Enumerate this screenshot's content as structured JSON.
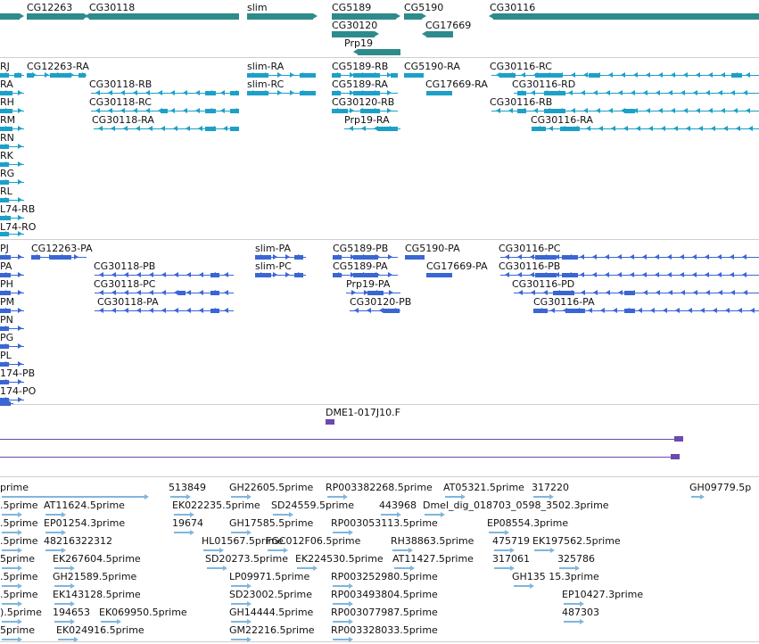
{
  "genes": [
    "CG12263",
    "CG30118",
    "slim",
    "CG5189",
    "CG5190",
    "CG30116",
    "CG30120",
    "CG17669",
    "Prp19"
  ],
  "transcripts_rna": [
    "RJ",
    "CG12263-RA",
    "slim-RA",
    "CG5189-RB",
    "CG5190-RA",
    "CG30116-RC",
    "RA",
    "CG30118-RB",
    "slim-RC",
    "CG5189-RA",
    "CG17669-RA",
    "CG30116-RD",
    "RH",
    "CG30118-RC",
    "CG30120-RB",
    "CG30116-RB",
    "RM",
    "CG30118-RA",
    "Prp19-RA",
    "CG30116-RA",
    "RN",
    "RK",
    "RG",
    "RL",
    "L74-RB",
    "L74-RO"
  ],
  "transcripts_protein": [
    "PJ",
    "CG12263-PA",
    "slim-PA",
    "CG5189-PB",
    "CG5190-PA",
    "CG30116-PC",
    "PA",
    "CG30118-PB",
    "slim-PC",
    "CG5189-PA",
    "CG17669-PA",
    "CG30116-PB",
    "PH",
    "CG30118-PC",
    "Prp19-PA",
    "CG30116-PD",
    "PM",
    "CG30118-PA",
    "CG30120-PB",
    "CG30116-PA",
    "PN",
    "PG",
    "PL",
    "174-PB",
    "174-PO"
  ],
  "clone": "DME1-017J10.F",
  "ests": [
    "prime",
    "513849",
    "GH22605.5prime",
    "RP003382268.5prime",
    "AT05321.5prime",
    "317220",
    "GH09779.5p",
    ".5prime",
    "AT11624.5prime",
    "EK022235.5prime",
    "SD24559.5prime",
    "443968",
    "Dmel_dig_018703_0598_3502.3prime",
    ".5prime",
    "EP01254.3prime",
    "19674",
    "GH17585.5prime",
    "RP003053113.5prime",
    "EP08554.3prime",
    ".5prime",
    "48216322312",
    "HL01567.5prime",
    "FGC012F06.5prime",
    "RH38863.5prime",
    "475719",
    "EK197562.5prime",
    "5prime",
    "EK267604.5prime",
    "SD20273.5prime",
    "EK224530.5prime",
    "AT11427.5prime",
    "317061",
    "325786",
    ".5prime",
    "GH21589.5prime",
    "LP09971.5prime",
    "RP003252980.5prime",
    "GH135 15.3prime",
    ".5prime",
    "EK143128.5prime",
    "SD23002.5prime",
    "RP003493804.5prime",
    "EP10427.3prime",
    ").5prime",
    "194653",
    "EK069950.5prime",
    "GH14444.5prime",
    "RP003077987.5prime",
    "487303",
    "5prime",
    "EK024916.5prime",
    "GM22216.5prime",
    "RP003328033.5prime"
  ],
  "colors": {
    "gene": "#2e8b8b",
    "rna": "#1ca0c8",
    "protein": "#3a66d4",
    "clone": "#6a4ab0",
    "est": "#7fb6dd",
    "label": "#111111"
  }
}
